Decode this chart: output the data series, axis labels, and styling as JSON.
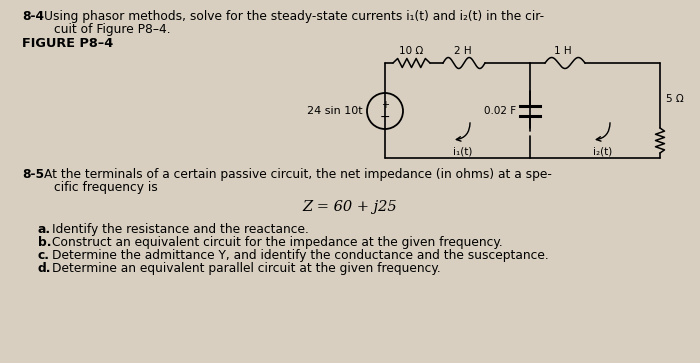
{
  "bg_color": "#d8cfc0",
  "title_num": "8-4",
  "problem2_num": "8-5",
  "equation": "Z = 60 + j25",
  "r1_label": "10 Ω",
  "l1_label": "2 H",
  "l2_label": "1 H",
  "c_label": "0.02 F",
  "r2_label": "5 Ω",
  "i1_label": "i₁(t)",
  "i2_label": "i₂(t)",
  "source_label": "24 sin 10t",
  "line1_84": "Using phasor methods, solve for the steady-state currents i₁(t) and i₂(t) in the cir-",
  "line2_84": "cuit of Figure P8–4.",
  "fig_label": "FIGURE P8–4",
  "line1_85": "At the terminals of a certain passive circuit, the net impedance (in ohms) at a spe-",
  "line2_85": "cific frequency is",
  "sub_a": "a.  Identify the resistance and the reactance.",
  "sub_b": "b.  Construct an equivalent circuit for the impedance at the given frequency.",
  "sub_c": "c.  Determine the admittance Y, and identify the conductance and the susceptance.",
  "sub_d": "d.  Determine an equivalent parallel circuit at the given frequency."
}
